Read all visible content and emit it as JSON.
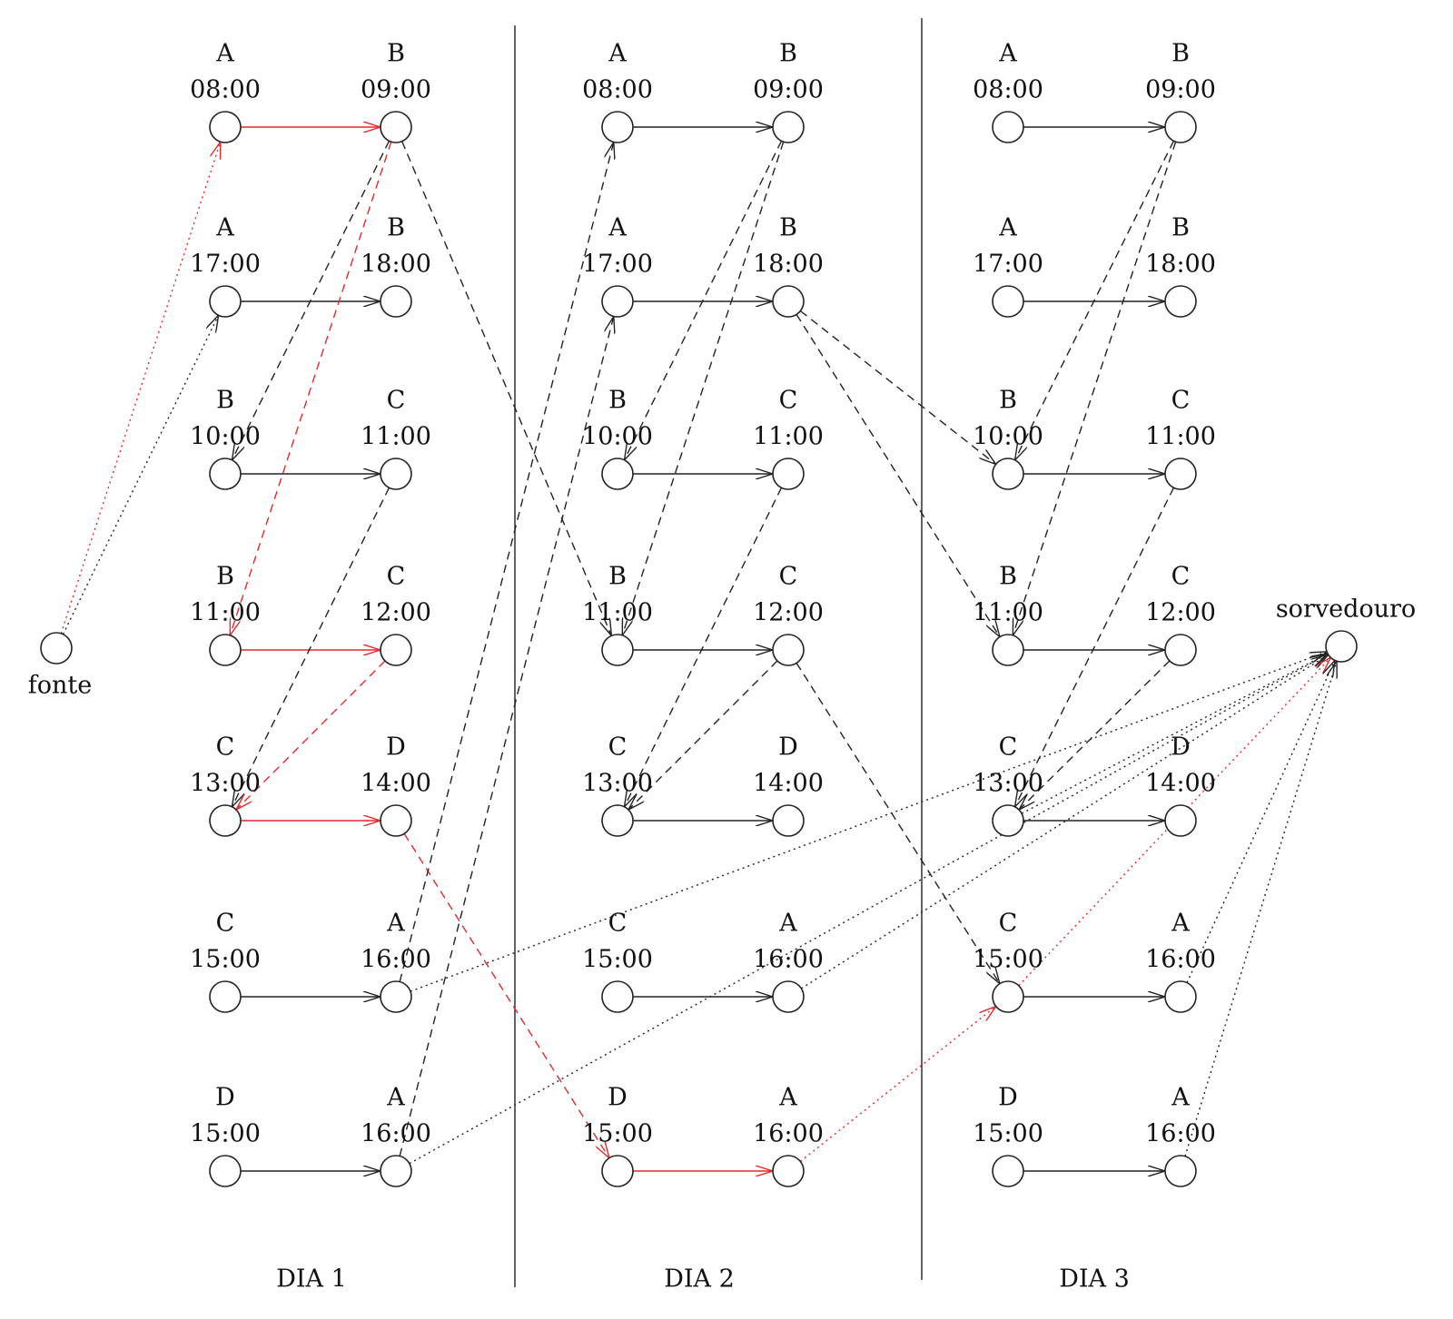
{
  "source": "fonte",
  "sink": "sorvedouro",
  "days": [
    {
      "label": "DIA 1",
      "flights": [
        {
          "from": {
            "loc": "A",
            "time": "08:00"
          },
          "to": {
            "loc": "B",
            "time": "09:00"
          }
        },
        {
          "from": {
            "loc": "A",
            "time": "17:00"
          },
          "to": {
            "loc": "B",
            "time": "18:00"
          }
        },
        {
          "from": {
            "loc": "B",
            "time": "10:00"
          },
          "to": {
            "loc": "C",
            "time": "11:00"
          }
        },
        {
          "from": {
            "loc": "B",
            "time": "11:00"
          },
          "to": {
            "loc": "C",
            "time": "12:00"
          }
        },
        {
          "from": {
            "loc": "C",
            "time": "13:00"
          },
          "to": {
            "loc": "D",
            "time": "14:00"
          }
        },
        {
          "from": {
            "loc": "C",
            "time": "15:00"
          },
          "to": {
            "loc": "A",
            "time": "16:00"
          }
        },
        {
          "from": {
            "loc": "D",
            "time": "15:00"
          },
          "to": {
            "loc": "A",
            "time": "16:00"
          }
        }
      ]
    },
    {
      "label": "DIA 2",
      "flights": [
        {
          "from": {
            "loc": "A",
            "time": "08:00"
          },
          "to": {
            "loc": "B",
            "time": "09:00"
          }
        },
        {
          "from": {
            "loc": "A",
            "time": "17:00"
          },
          "to": {
            "loc": "B",
            "time": "18:00"
          }
        },
        {
          "from": {
            "loc": "B",
            "time": "10:00"
          },
          "to": {
            "loc": "C",
            "time": "11:00"
          }
        },
        {
          "from": {
            "loc": "B",
            "time": "11:00"
          },
          "to": {
            "loc": "C",
            "time": "12:00"
          }
        },
        {
          "from": {
            "loc": "C",
            "time": "13:00"
          },
          "to": {
            "loc": "D",
            "time": "14:00"
          }
        },
        {
          "from": {
            "loc": "C",
            "time": "15:00"
          },
          "to": {
            "loc": "A",
            "time": "16:00"
          }
        },
        {
          "from": {
            "loc": "D",
            "time": "15:00"
          },
          "to": {
            "loc": "A",
            "time": "16:00"
          }
        }
      ]
    },
    {
      "label": "DIA 3",
      "flights": [
        {
          "from": {
            "loc": "A",
            "time": "08:00"
          },
          "to": {
            "loc": "B",
            "time": "09:00"
          }
        },
        {
          "from": {
            "loc": "A",
            "time": "17:00"
          },
          "to": {
            "loc": "B",
            "time": "18:00"
          }
        },
        {
          "from": {
            "loc": "B",
            "time": "10:00"
          },
          "to": {
            "loc": "C",
            "time": "11:00"
          }
        },
        {
          "from": {
            "loc": "B",
            "time": "11:00"
          },
          "to": {
            "loc": "C",
            "time": "12:00"
          }
        },
        {
          "from": {
            "loc": "C",
            "time": "13:00"
          },
          "to": {
            "loc": "D",
            "time": "14:00"
          }
        },
        {
          "from": {
            "loc": "C",
            "time": "15:00"
          },
          "to": {
            "loc": "A",
            "time": "16:00"
          }
        },
        {
          "from": {
            "loc": "D",
            "time": "15:00"
          },
          "to": {
            "loc": "A",
            "time": "16:00"
          }
        }
      ]
    }
  ]
}
